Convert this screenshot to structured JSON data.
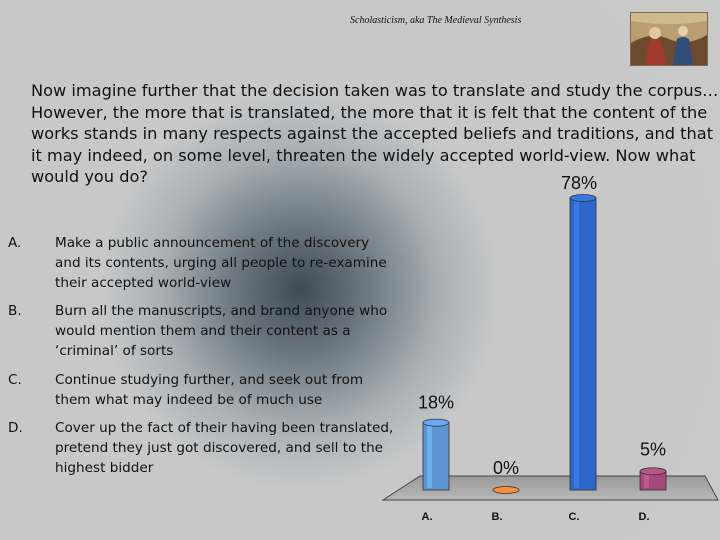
{
  "slide": {
    "header_title": "Scholasticism, aka The Medieval Synthesis",
    "question": "Now imagine further that the decision taken was to translate and study the corpus… However, the more that is translated, the more that it is felt that the content of the works stands in many respects against the accepted beliefs and traditions, and that it may indeed, on some level, threaten the widely accepted world-view. Now what would you do?",
    "options": [
      {
        "letter": "A.",
        "text": "Make a public announcement of the discovery and its contents, urging all people to re-examine their accepted world-view"
      },
      {
        "letter": "B.",
        "text": "Burn all the manuscripts, and brand anyone who would mention them and their content as a ‘criminal’ of sorts"
      },
      {
        "letter": "C.",
        "text": "Continue studying further, and seek out from them what may indeed be of much use"
      },
      {
        "letter": "D.",
        "text": "Cover up the fact of their having been translated, pretend they just got discovered, and sell to the highest bidder"
      }
    ]
  },
  "chart_data": {
    "type": "bar",
    "categories": [
      "A.",
      "B.",
      "C.",
      "D."
    ],
    "values": [
      18,
      0,
      78,
      5
    ],
    "data_labels": [
      "18%",
      "0%",
      "78%",
      "5%"
    ],
    "ylim": [
      0,
      78
    ],
    "grid": false,
    "colors": [
      "#5b93d3",
      "#d97a33",
      "#2f67c8",
      "#a24a78"
    ]
  }
}
